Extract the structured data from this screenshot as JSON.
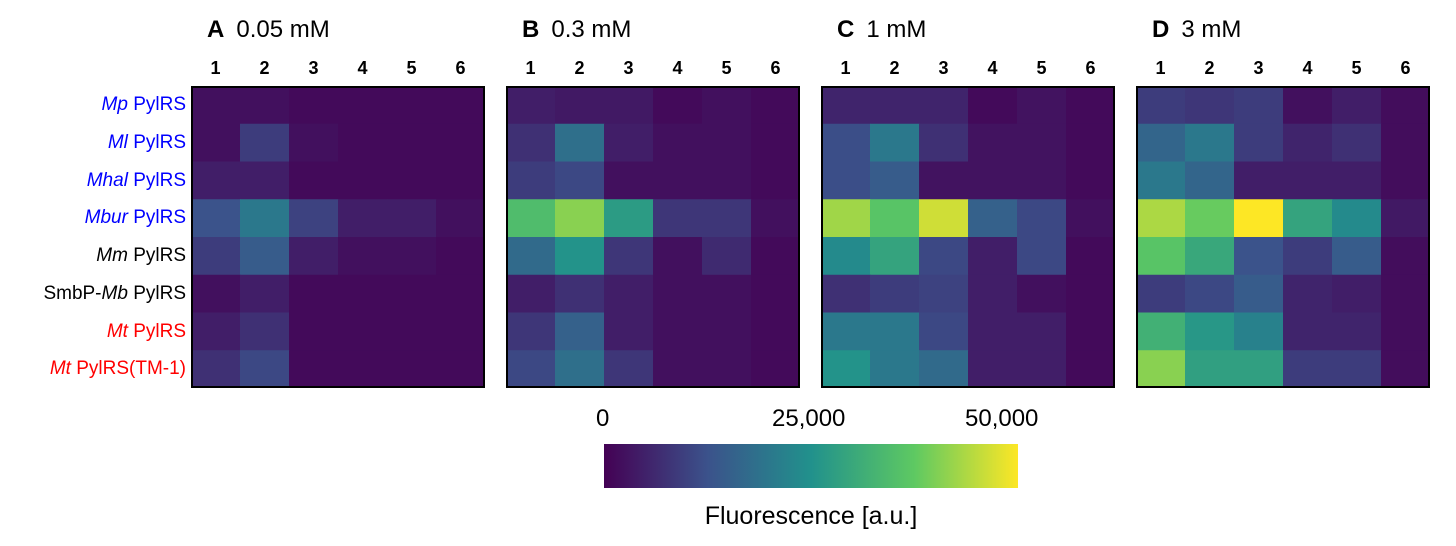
{
  "chart_data": {
    "type": "heatmap",
    "colormap": "viridis",
    "colormap_stops": [
      "#440154",
      "#3b528b",
      "#21918c",
      "#5ec962",
      "#fde725"
    ],
    "rows": [
      {
        "italic": "Mp",
        "roman": " PylRS",
        "color": "#0000ff"
      },
      {
        "italic": "Ml",
        "roman": " PylRS",
        "color": "#0000ff"
      },
      {
        "italic": "Mhal",
        "roman": " PylRS",
        "color": "#0000ff"
      },
      {
        "italic": "Mbur",
        "roman": " PylRS",
        "color": "#0000ff"
      },
      {
        "italic": "Mm",
        "roman": " PylRS",
        "color": "#000000"
      },
      {
        "prefix": "SmbP-",
        "italic": "Mb",
        "roman": " PylRS",
        "color": "#000000"
      },
      {
        "italic": "Mt",
        "roman": " PylRS",
        "color": "#ff0000"
      },
      {
        "italic": "Mt",
        "roman": " PylRS(TM-1)",
        "color": "#ff0000"
      }
    ],
    "columns": [
      "1",
      "2",
      "3",
      "4",
      "5",
      "6"
    ],
    "range": [
      0,
      55000
    ],
    "panels": [
      {
        "letter": "A",
        "title": "0.05 mM",
        "values": [
          [
            2500,
            2500,
            1500,
            1500,
            1500,
            1500
          ],
          [
            2500,
            10000,
            2500,
            1500,
            1500,
            1500
          ],
          [
            5000,
            5000,
            1500,
            1500,
            1500,
            1500
          ],
          [
            14000,
            22000,
            11000,
            5000,
            5000,
            2500
          ],
          [
            10000,
            16000,
            5000,
            2500,
            2500,
            1500
          ],
          [
            2500,
            5000,
            1500,
            1500,
            1500,
            1500
          ],
          [
            5000,
            8000,
            1500,
            1500,
            1500,
            1500
          ],
          [
            8000,
            12000,
            1500,
            1500,
            1500,
            1500
          ]
        ]
      },
      {
        "letter": "B",
        "title": "0.3 mM",
        "values": [
          [
            5000,
            4000,
            4000,
            1500,
            2500,
            1500
          ],
          [
            8000,
            20000,
            5000,
            2500,
            2500,
            1500
          ],
          [
            10000,
            12000,
            2500,
            2500,
            2500,
            1500
          ],
          [
            38000,
            45000,
            30000,
            9000,
            9000,
            2500
          ],
          [
            19000,
            28000,
            9000,
            2500,
            7000,
            1500
          ],
          [
            5000,
            8000,
            5000,
            2500,
            2500,
            1500
          ],
          [
            9000,
            17000,
            5000,
            2500,
            2500,
            1500
          ],
          [
            12000,
            20000,
            9000,
            2500,
            2500,
            1500
          ]
        ]
      },
      {
        "letter": "C",
        "title": "1 mM",
        "values": [
          [
            6000,
            6000,
            6000,
            1500,
            3000,
            1500
          ],
          [
            13000,
            22000,
            8000,
            3000,
            3000,
            1500
          ],
          [
            13000,
            16000,
            3000,
            3000,
            3000,
            1500
          ],
          [
            47000,
            40000,
            51000,
            17000,
            12000,
            2500
          ],
          [
            26000,
            32000,
            12000,
            5000,
            12000,
            1500
          ],
          [
            8000,
            10000,
            11000,
            5000,
            2500,
            1500
          ],
          [
            22000,
            22000,
            12000,
            5000,
            5000,
            1500
          ],
          [
            28000,
            22000,
            19000,
            5000,
            5000,
            1500
          ]
        ]
      },
      {
        "letter": "D",
        "title": "3 mM",
        "values": [
          [
            10000,
            9000,
            10000,
            2500,
            5000,
            2000
          ],
          [
            18000,
            22000,
            10000,
            6000,
            8000,
            2000
          ],
          [
            22000,
            18000,
            5000,
            5000,
            5000,
            2000
          ],
          [
            48000,
            42000,
            55000,
            32000,
            26000,
            4000
          ],
          [
            40000,
            33000,
            14000,
            10000,
            16000,
            2000
          ],
          [
            10000,
            12000,
            16000,
            6000,
            5000,
            2000
          ],
          [
            35000,
            29000,
            24000,
            6000,
            6000,
            2000
          ],
          [
            45000,
            31000,
            31000,
            10000,
            10000,
            2000
          ]
        ]
      }
    ],
    "colorbar": {
      "ticks": [
        "0",
        "25,000",
        "50,000"
      ],
      "tick_values": [
        0,
        25000,
        50000
      ],
      "label": "Fluorescence [a.u.]"
    }
  }
}
